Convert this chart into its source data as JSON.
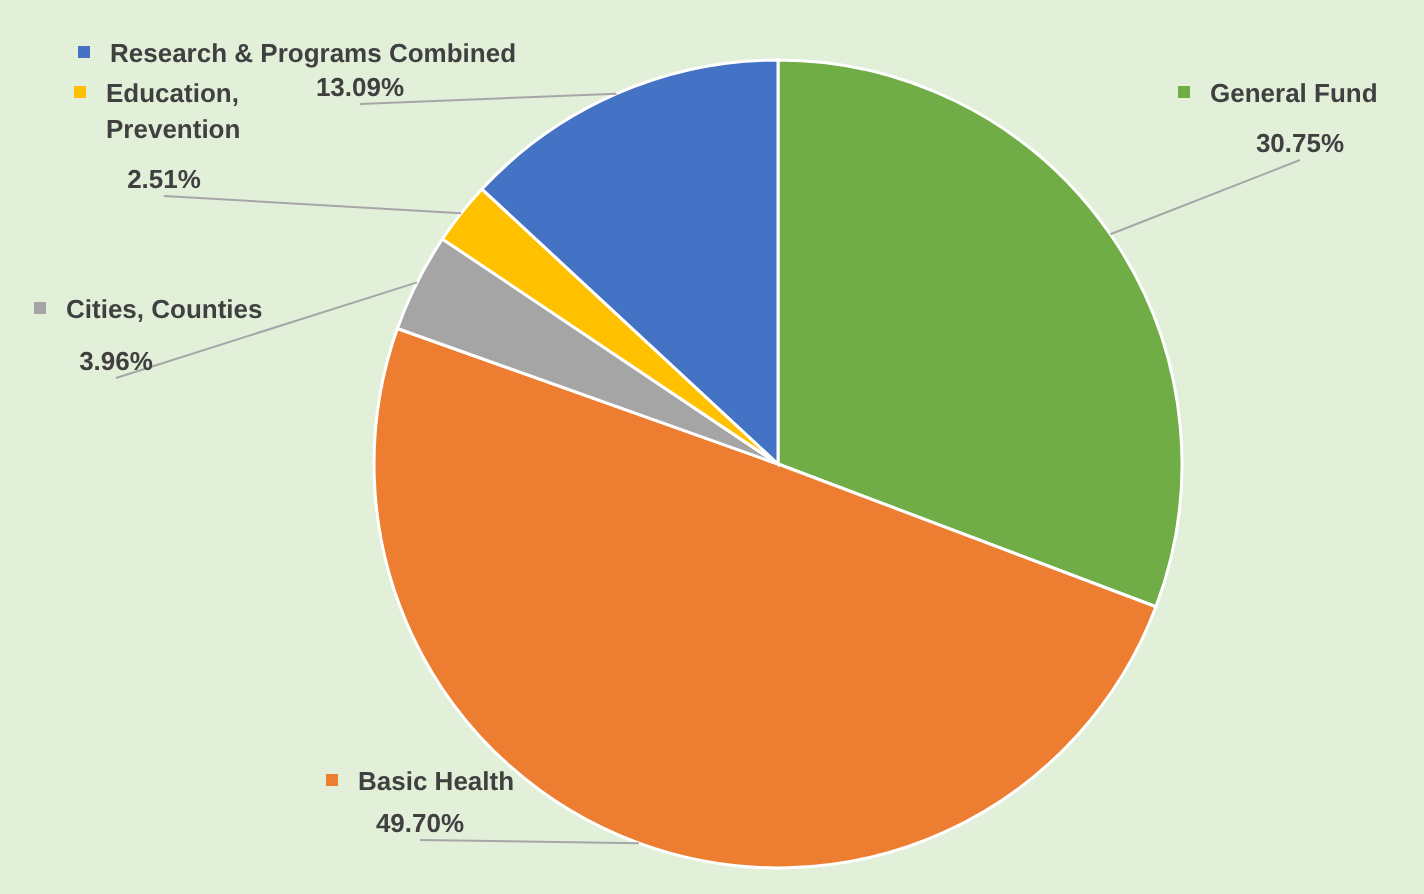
{
  "chart_data": {
    "type": "pie",
    "categories": [
      "General Fund",
      "Basic Health",
      "Cities, Counties",
      "Education, Prevention",
      "Research & Programs Combined"
    ],
    "values": [
      30.75,
      49.7,
      3.96,
      2.51,
      13.09
    ],
    "colors": [
      "#70ad47",
      "#ed7d31",
      "#a5a5a5",
      "#ffc000",
      "#4472c4"
    ],
    "value_labels": [
      "30.75%",
      "49.70%",
      "3.96%",
      "2.51%",
      "13.09%"
    ],
    "legend": "top left"
  }
}
